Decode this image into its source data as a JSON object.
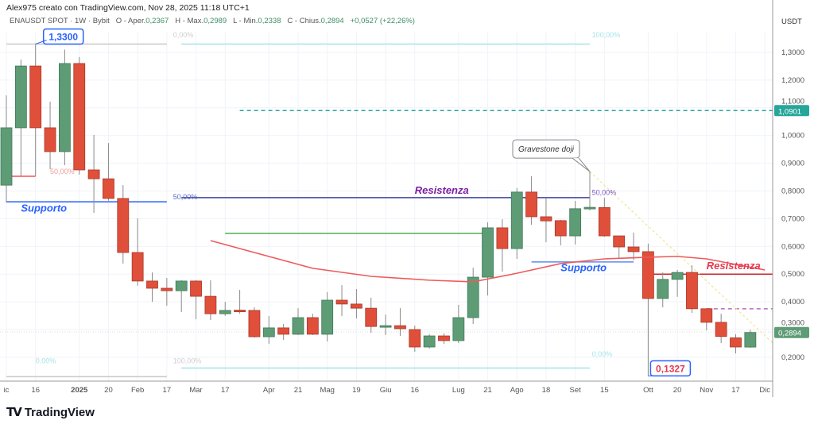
{
  "credit": "Alex975 creato con TradingView.com, Nov 28, 2025 11:18 UTC+1",
  "legend": {
    "symbol": "ENAUSDT SPOT · 1W · Bybit",
    "open_label": "O - Aper.",
    "open": "0,2367",
    "high_label": "H - Max.",
    "high": "0,2989",
    "low_label": "L - Min.",
    "low": "0,2338",
    "close_label": "C - Chius.",
    "close": "0,2894",
    "change": "+0,0527 (+22,26%)"
  },
  "brand": {
    "logo": "TV",
    "name": "TradingView"
  },
  "chart_data": {
    "type": "candlestick",
    "currency": "USDT",
    "ylim": [
      0.13,
      1.35
    ],
    "grid": true,
    "colors": {
      "up": "#5e9c76",
      "down": "#e04f3a",
      "wick": "#8a8a8a",
      "ma": "#ef5a5a"
    },
    "y_ticks": [
      "1,3000",
      "1,2000",
      "1,1000",
      "1,0000",
      "0,9000",
      "0,8000",
      "0,7000",
      "0,6000",
      "0,5000",
      "0,4000",
      "0,3000",
      "0,2000"
    ],
    "y_tick_values": [
      1.3,
      1.2,
      1.1,
      1.0,
      0.9,
      0.8,
      0.7,
      0.6,
      0.5,
      0.4,
      0.3,
      0.2
    ],
    "x_ticks": [
      {
        "label": "ic",
        "date": "2024-12-02"
      },
      {
        "label": "16",
        "date": "2024-12-16"
      },
      {
        "label": "2025",
        "date": "2025-01-06",
        "bold": true
      },
      {
        "label": "20",
        "date": "2025-01-20"
      },
      {
        "label": "Feb",
        "date": "2025-02-03"
      },
      {
        "label": "17",
        "date": "2025-02-17"
      },
      {
        "label": "Mar",
        "date": "2025-03-03"
      },
      {
        "label": "17",
        "date": "2025-03-17"
      },
      {
        "label": "Apr",
        "date": "2025-04-07"
      },
      {
        "label": "21",
        "date": "2025-04-21"
      },
      {
        "label": "Mag",
        "date": "2025-05-05"
      },
      {
        "label": "19",
        "date": "2025-05-19"
      },
      {
        "label": "Giu",
        "date": "2025-06-02"
      },
      {
        "label": "16",
        "date": "2025-06-16"
      },
      {
        "label": "Lug",
        "date": "2025-07-07"
      },
      {
        "label": "21",
        "date": "2025-07-21"
      },
      {
        "label": "Ago",
        "date": "2025-08-04"
      },
      {
        "label": "18",
        "date": "2025-08-18"
      },
      {
        "label": "Set",
        "date": "2025-09-01"
      },
      {
        "label": "15",
        "date": "2025-09-15"
      },
      {
        "label": "Ott",
        "date": "2025-10-06"
      },
      {
        "label": "20",
        "date": "2025-10-20"
      },
      {
        "label": "Nov",
        "date": "2025-11-03"
      },
      {
        "label": "17",
        "date": "2025-11-17"
      },
      {
        "label": "Dic",
        "date": "2025-12-01"
      }
    ],
    "candles": [
      {
        "date": "2024-12-02",
        "o": 0.821,
        "h": 1.145,
        "l": 0.758,
        "c": 1.028
      },
      {
        "date": "2024-12-09",
        "o": 1.028,
        "h": 1.274,
        "l": 0.853,
        "c": 1.251
      },
      {
        "date": "2024-12-16",
        "o": 1.251,
        "h": 1.33,
        "l": 0.853,
        "c": 1.028
      },
      {
        "date": "2024-12-23",
        "o": 1.028,
        "h": 1.122,
        "l": 0.879,
        "c": 0.942
      },
      {
        "date": "2024-12-30",
        "o": 0.942,
        "h": 1.31,
        "l": 0.893,
        "c": 1.26
      },
      {
        "date": "2025-01-06",
        "o": 1.26,
        "h": 1.283,
        "l": 0.859,
        "c": 0.876
      },
      {
        "date": "2025-01-13",
        "o": 0.876,
        "h": 1.002,
        "l": 0.721,
        "c": 0.844
      },
      {
        "date": "2025-01-20",
        "o": 0.844,
        "h": 0.973,
        "l": 0.765,
        "c": 0.773
      },
      {
        "date": "2025-01-27",
        "o": 0.773,
        "h": 0.821,
        "l": 0.538,
        "c": 0.578
      },
      {
        "date": "2025-02-03",
        "o": 0.578,
        "h": 0.701,
        "l": 0.458,
        "c": 0.475
      },
      {
        "date": "2025-02-10",
        "o": 0.475,
        "h": 0.506,
        "l": 0.4,
        "c": 0.449
      },
      {
        "date": "2025-02-17",
        "o": 0.449,
        "h": 0.486,
        "l": 0.386,
        "c": 0.44
      },
      {
        "date": "2025-02-24",
        "o": 0.44,
        "h": 0.478,
        "l": 0.363,
        "c": 0.475
      },
      {
        "date": "2025-03-03",
        "o": 0.475,
        "h": 0.478,
        "l": 0.337,
        "c": 0.42
      },
      {
        "date": "2025-03-10",
        "o": 0.42,
        "h": 0.478,
        "l": 0.334,
        "c": 0.357
      },
      {
        "date": "2025-03-17",
        "o": 0.357,
        "h": 0.4,
        "l": 0.349,
        "c": 0.369
      },
      {
        "date": "2025-03-24",
        "o": 0.37,
        "h": 0.443,
        "l": 0.357,
        "c": 0.368
      },
      {
        "date": "2025-03-31",
        "o": 0.369,
        "h": 0.38,
        "l": 0.271,
        "c": 0.274
      },
      {
        "date": "2025-04-07",
        "o": 0.274,
        "h": 0.349,
        "l": 0.248,
        "c": 0.306
      },
      {
        "date": "2025-04-14",
        "o": 0.306,
        "h": 0.32,
        "l": 0.263,
        "c": 0.283
      },
      {
        "date": "2025-04-21",
        "o": 0.283,
        "h": 0.377,
        "l": 0.28,
        "c": 0.343
      },
      {
        "date": "2025-04-28",
        "o": 0.343,
        "h": 0.357,
        "l": 0.28,
        "c": 0.283
      },
      {
        "date": "2025-05-05",
        "o": 0.283,
        "h": 0.435,
        "l": 0.257,
        "c": 0.406
      },
      {
        "date": "2025-05-12",
        "o": 0.406,
        "h": 0.46,
        "l": 0.349,
        "c": 0.392
      },
      {
        "date": "2025-05-19",
        "o": 0.392,
        "h": 0.446,
        "l": 0.34,
        "c": 0.377
      },
      {
        "date": "2025-05-26",
        "o": 0.377,
        "h": 0.415,
        "l": 0.288,
        "c": 0.311
      },
      {
        "date": "2025-06-02",
        "o": 0.312,
        "h": 0.354,
        "l": 0.28,
        "c": 0.314
      },
      {
        "date": "2025-06-09",
        "o": 0.314,
        "h": 0.377,
        "l": 0.277,
        "c": 0.303
      },
      {
        "date": "2025-06-16",
        "o": 0.3,
        "h": 0.314,
        "l": 0.22,
        "c": 0.237
      },
      {
        "date": "2025-06-23",
        "o": 0.237,
        "h": 0.283,
        "l": 0.231,
        "c": 0.277
      },
      {
        "date": "2025-06-30",
        "o": 0.277,
        "h": 0.286,
        "l": 0.248,
        "c": 0.26
      },
      {
        "date": "2025-07-07",
        "o": 0.26,
        "h": 0.389,
        "l": 0.251,
        "c": 0.343
      },
      {
        "date": "2025-07-14",
        "o": 0.343,
        "h": 0.523,
        "l": 0.32,
        "c": 0.489
      },
      {
        "date": "2025-07-21",
        "o": 0.489,
        "h": 0.687,
        "l": 0.423,
        "c": 0.667
      },
      {
        "date": "2025-07-28",
        "o": 0.667,
        "h": 0.698,
        "l": 0.509,
        "c": 0.592
      },
      {
        "date": "2025-08-04",
        "o": 0.592,
        "h": 0.81,
        "l": 0.555,
        "c": 0.796
      },
      {
        "date": "2025-08-11",
        "o": 0.796,
        "h": 0.853,
        "l": 0.678,
        "c": 0.707
      },
      {
        "date": "2025-08-18",
        "o": 0.707,
        "h": 0.773,
        "l": 0.615,
        "c": 0.692
      },
      {
        "date": "2025-08-25",
        "o": 0.693,
        "h": 0.696,
        "l": 0.604,
        "c": 0.638
      },
      {
        "date": "2025-09-01",
        "o": 0.638,
        "h": 0.764,
        "l": 0.607,
        "c": 0.736
      },
      {
        "date": "2025-09-08",
        "o": 0.738,
        "h": 0.87,
        "l": 0.73,
        "c": 0.741
      },
      {
        "date": "2025-09-15",
        "o": 0.74,
        "h": 0.776,
        "l": 0.635,
        "c": 0.638
      },
      {
        "date": "2025-09-22",
        "o": 0.638,
        "h": 0.638,
        "l": 0.555,
        "c": 0.598
      },
      {
        "date": "2025-09-29",
        "o": 0.598,
        "h": 0.65,
        "l": 0.55,
        "c": 0.581
      },
      {
        "date": "2025-10-06",
        "o": 0.581,
        "h": 0.61,
        "l": 0.1327,
        "c": 0.412
      },
      {
        "date": "2025-10-13",
        "o": 0.412,
        "h": 0.506,
        "l": 0.38,
        "c": 0.481
      },
      {
        "date": "2025-10-20",
        "o": 0.481,
        "h": 0.515,
        "l": 0.418,
        "c": 0.506
      },
      {
        "date": "2025-10-27",
        "o": 0.506,
        "h": 0.532,
        "l": 0.36,
        "c": 0.375
      },
      {
        "date": "2025-11-03",
        "o": 0.375,
        "h": 0.375,
        "l": 0.297,
        "c": 0.326
      },
      {
        "date": "2025-11-10",
        "o": 0.326,
        "h": 0.357,
        "l": 0.251,
        "c": 0.275
      },
      {
        "date": "2025-11-17",
        "o": 0.27,
        "h": 0.283,
        "l": 0.214,
        "c": 0.237
      },
      {
        "date": "2025-11-24",
        "o": 0.2367,
        "h": 0.2989,
        "l": 0.2338,
        "c": 0.2894
      }
    ],
    "moving_average": [
      {
        "date": "2025-03-10",
        "v": 0.621
      },
      {
        "date": "2025-03-31",
        "v": 0.578
      },
      {
        "date": "2025-04-28",
        "v": 0.521
      },
      {
        "date": "2025-05-26",
        "v": 0.492
      },
      {
        "date": "2025-06-23",
        "v": 0.478
      },
      {
        "date": "2025-07-14",
        "v": 0.472
      },
      {
        "date": "2025-08-04",
        "v": 0.503
      },
      {
        "date": "2025-08-25",
        "v": 0.538
      },
      {
        "date": "2025-09-15",
        "v": 0.555
      },
      {
        "date": "2025-10-06",
        "v": 0.561
      },
      {
        "date": "2025-10-20",
        "v": 0.564
      },
      {
        "date": "2025-11-03",
        "v": 0.555
      },
      {
        "date": "2025-11-17",
        "v": 0.535
      },
      {
        "date": "2025-12-01",
        "v": 0.515
      }
    ],
    "levels": [
      {
        "name": "teal-dashed-level",
        "price": 1.0901,
        "from": "2025-03-24",
        "to": "2025-12-05",
        "color": "#26a69a",
        "dash": true
      },
      {
        "name": "supporto-line-left",
        "price": 0.761,
        "from": "2024-12-02",
        "to": "2025-02-17",
        "color": "#2962ff"
      },
      {
        "name": "resistenza-line",
        "price": 0.776,
        "from": "2025-02-24",
        "to": "2025-09-08",
        "color": "#3f3fa0"
      },
      {
        "name": "green-level",
        "price": 0.647,
        "from": "2025-03-17",
        "to": "2025-07-21",
        "color": "#4caf50"
      },
      {
        "name": "supporto-line-right",
        "price": 0.544,
        "from": "2025-08-11",
        "to": "2025-09-29",
        "color": "#5b8def"
      },
      {
        "name": "resistenza-line-right",
        "price": 0.5,
        "from": "2025-10-06",
        "to": "2025-12-05",
        "color": "#c62828"
      },
      {
        "name": "purple-dashed-level",
        "price": 0.375,
        "from": "2025-11-03",
        "to": "2025-12-05",
        "color": "#ba68c8",
        "dash": true
      },
      {
        "name": "fib-left-top",
        "price": 1.33,
        "from": "2024-12-02",
        "to": "2025-02-17",
        "color": "#c8c8c8"
      },
      {
        "name": "fib-left-bottom",
        "price": 0.13,
        "from": "2024-12-02",
        "to": "2025-02-17",
        "color": "#c8c8c8"
      },
      {
        "name": "fib-mid-top",
        "price": 1.33,
        "from": "2025-02-24",
        "to": "2025-09-08",
        "color": "#a6e3e9"
      },
      {
        "name": "fib-mid-bottom",
        "price": 0.161,
        "from": "2025-02-24",
        "to": "2025-09-08",
        "color": "#a6e3e9"
      },
      {
        "name": "red-fib-short",
        "price": 0.853,
        "from": "2024-12-02",
        "to": "2024-12-16",
        "color": "#ef5350"
      }
    ],
    "trendline": {
      "from": {
        "date": "2025-09-08",
        "price": 0.87
      },
      "to": {
        "date": "2025-12-05",
        "price": 0.25
      },
      "color": "#f0e68c"
    },
    "annotations": [
      {
        "text": "Supporto",
        "date": "2024-12-09",
        "price": 0.725,
        "color": "#2962ff",
        "style": "label"
      },
      {
        "text": "Resistenza",
        "date": "2025-06-16",
        "price": 0.79,
        "color": "#7b1fa2",
        "style": "label"
      },
      {
        "text": "Supporto",
        "date": "2025-08-25",
        "price": 0.51,
        "color": "#2962ff",
        "style": "label"
      },
      {
        "text": "Resistenza",
        "date": "2025-11-03",
        "price": 0.518,
        "color": "#e53950",
        "style": "label"
      },
      {
        "text": "50,00%",
        "date": "2024-12-23",
        "price": 0.862,
        "color": "#ef9a9a",
        "style": "pct"
      },
      {
        "text": "50,00%",
        "date": "2025-02-20",
        "price": 0.77,
        "color": "#5c6bc0",
        "style": "pct"
      },
      {
        "text": "50,00%",
        "date": "2025-09-09",
        "price": 0.785,
        "color": "#7e57c2",
        "style": "pct"
      },
      {
        "text": "0,00%",
        "date": "2025-02-20",
        "price": 1.355,
        "color": "#cfcfcf",
        "style": "pct"
      },
      {
        "text": "100,00%",
        "date": "2025-09-09",
        "price": 1.355,
        "color": "#a6e3e9",
        "style": "pct"
      },
      {
        "text": "0,00%",
        "date": "2024-12-16",
        "price": 0.178,
        "color": "#a6e3e9",
        "style": "pct"
      },
      {
        "text": "100,00%",
        "date": "2025-02-20",
        "price": 0.178,
        "color": "#cfcfcf",
        "style": "pct"
      },
      {
        "text": "0,00%",
        "date": "2025-09-09",
        "price": 0.203,
        "color": "#a6e3e9",
        "style": "pct"
      }
    ],
    "callouts": [
      {
        "text": "1,3300",
        "date": "2024-12-16",
        "price": 1.33,
        "color": "#2962ff",
        "text_color": "#2962ff"
      },
      {
        "text": "0,1327",
        "date": "2025-10-06",
        "price": 0.1327,
        "color": "#2962ff",
        "text_color": "#e53950"
      },
      {
        "text": "Gravestone doji",
        "date": "2025-09-08",
        "price": 0.87,
        "color": "#888",
        "text_color": "#333",
        "note": true
      }
    ],
    "price_badges": [
      {
        "text": "1,0901",
        "price": 1.0901,
        "color": "#26a69a"
      },
      {
        "text": "0,2894",
        "price": 0.2894,
        "color": "#5e9c76"
      }
    ]
  }
}
